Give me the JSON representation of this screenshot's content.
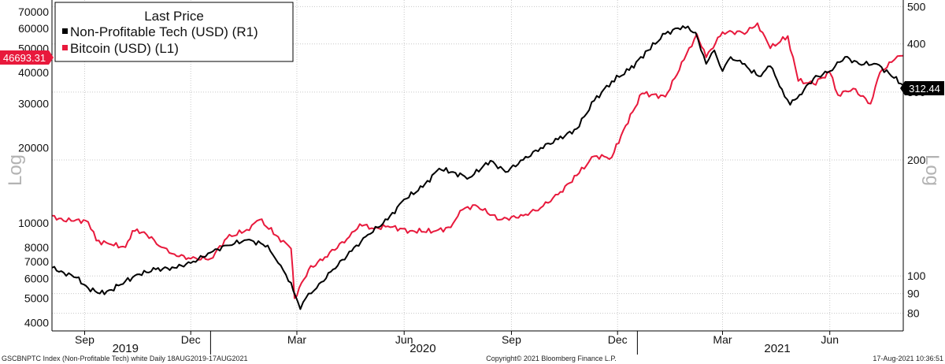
{
  "chart_data": {
    "type": "line",
    "legend": {
      "title": "Last Price",
      "placement": "top-left",
      "entries": [
        {
          "label": "Non-Profitable Tech (USD)  (R1)",
          "color": "#000000"
        },
        {
          "label": "Bitcoin (USD)  (L1)",
          "color": "#e8193c"
        }
      ]
    },
    "y_left": {
      "scale": "log",
      "label": "Log",
      "ticks": [
        "4000",
        "5000",
        "6000",
        "7000",
        "8000",
        "10000",
        "20000",
        "30000",
        "40000",
        "50000",
        "60000",
        "70000"
      ],
      "tick_values": [
        4000,
        5000,
        6000,
        7000,
        8000,
        10000,
        20000,
        30000,
        40000,
        50000,
        60000,
        70000
      ],
      "range": [
        3700,
        78000
      ],
      "last_value_tag": "46693.31"
    },
    "y_right": {
      "scale": "log",
      "label": "Log",
      "ticks": [
        "80",
        "90",
        "100",
        "200",
        "300",
        "400",
        "500"
      ],
      "tick_values": [
        80,
        90,
        100,
        200,
        300,
        400,
        500
      ],
      "range": [
        72,
        520
      ],
      "last_value_tag": "312.44"
    },
    "x_axis": {
      "range": [
        "2019-08-18",
        "2021-08-17"
      ],
      "month_ticks": [
        {
          "label": "Sep",
          "date": "2019-09-15"
        },
        {
          "label": "Dec",
          "date": "2019-12-15"
        },
        {
          "label": "Mar",
          "date": "2020-03-15"
        },
        {
          "label": "Jun",
          "date": "2020-06-15"
        },
        {
          "label": "Sep",
          "date": "2020-09-15"
        },
        {
          "label": "Dec",
          "date": "2020-12-15"
        },
        {
          "label": "Mar",
          "date": "2021-03-15"
        },
        {
          "label": "Jun",
          "date": "2021-06-15"
        }
      ],
      "year_labels": [
        {
          "label": "2019",
          "date": "2019-10-20"
        },
        {
          "label": "2020",
          "date": "2020-07-01"
        },
        {
          "label": "2021",
          "date": "2021-05-01"
        }
      ],
      "year_boundaries": [
        "2020-01-01",
        "2021-01-01"
      ]
    },
    "grid": true,
    "series": [
      {
        "name": "Non-Profitable Tech (USD)  (R1)",
        "axis": "right",
        "color": "#000000",
        "points": [
          [
            "2019-08-18",
            105
          ],
          [
            "2019-08-28",
            102
          ],
          [
            "2019-09-08",
            99
          ],
          [
            "2019-09-18",
            93
          ],
          [
            "2019-09-28",
            90
          ],
          [
            "2019-10-08",
            92
          ],
          [
            "2019-10-20",
            97
          ],
          [
            "2019-11-01",
            101
          ],
          [
            "2019-11-15",
            104
          ],
          [
            "2019-12-01",
            105
          ],
          [
            "2019-12-15",
            108
          ],
          [
            "2020-01-01",
            115
          ],
          [
            "2020-01-15",
            120
          ],
          [
            "2020-02-01",
            124
          ],
          [
            "2020-02-19",
            120
          ],
          [
            "2020-02-28",
            108
          ],
          [
            "2020-03-10",
            96
          ],
          [
            "2020-03-18",
            82
          ],
          [
            "2020-03-25",
            90
          ],
          [
            "2020-04-01",
            93
          ],
          [
            "2020-04-15",
            104
          ],
          [
            "2020-05-01",
            116
          ],
          [
            "2020-05-15",
            128
          ],
          [
            "2020-06-01",
            140
          ],
          [
            "2020-06-15",
            158
          ],
          [
            "2020-07-01",
            170
          ],
          [
            "2020-07-15",
            190
          ],
          [
            "2020-07-25",
            186
          ],
          [
            "2020-08-10",
            180
          ],
          [
            "2020-08-28",
            199
          ],
          [
            "2020-09-10",
            186
          ],
          [
            "2020-09-25",
            200
          ],
          [
            "2020-10-10",
            215
          ],
          [
            "2020-10-25",
            226
          ],
          [
            "2020-11-10",
            241
          ],
          [
            "2020-11-25",
            285
          ],
          [
            "2020-12-10",
            320
          ],
          [
            "2020-12-25",
            342
          ],
          [
            "2021-01-10",
            385
          ],
          [
            "2021-01-25",
            425
          ],
          [
            "2021-02-09",
            445
          ],
          [
            "2021-02-20",
            428
          ],
          [
            "2021-03-01",
            355
          ],
          [
            "2021-03-08",
            385
          ],
          [
            "2021-03-15",
            340
          ],
          [
            "2021-03-22",
            370
          ],
          [
            "2021-04-01",
            355
          ],
          [
            "2021-04-15",
            330
          ],
          [
            "2021-04-25",
            350
          ],
          [
            "2021-05-05",
            305
          ],
          [
            "2021-05-12",
            278
          ],
          [
            "2021-05-20",
            295
          ],
          [
            "2021-06-01",
            325
          ],
          [
            "2021-06-15",
            340
          ],
          [
            "2021-06-28",
            370
          ],
          [
            "2021-07-10",
            355
          ],
          [
            "2021-07-25",
            355
          ],
          [
            "2021-08-05",
            335
          ],
          [
            "2021-08-17",
            312.44
          ]
        ]
      },
      {
        "name": "Bitcoin (USD)  (L1)",
        "axis": "left",
        "color": "#e8193c",
        "points": [
          [
            "2019-08-18",
            10700
          ],
          [
            "2019-08-28",
            10200
          ],
          [
            "2019-09-08",
            10300
          ],
          [
            "2019-09-18",
            10100
          ],
          [
            "2019-09-25",
            8500
          ],
          [
            "2019-10-08",
            8200
          ],
          [
            "2019-10-20",
            8000
          ],
          [
            "2019-10-26",
            9300
          ],
          [
            "2019-11-05",
            9200
          ],
          [
            "2019-11-20",
            8000
          ],
          [
            "2019-12-01",
            7500
          ],
          [
            "2019-12-15",
            7200
          ],
          [
            "2020-01-01",
            7200
          ],
          [
            "2020-01-15",
            8700
          ],
          [
            "2020-02-01",
            9400
          ],
          [
            "2020-02-12",
            10300
          ],
          [
            "2020-02-28",
            8800
          ],
          [
            "2020-03-10",
            7900
          ],
          [
            "2020-03-13",
            5000
          ],
          [
            "2020-03-25",
            6500
          ],
          [
            "2020-04-08",
            7300
          ],
          [
            "2020-04-29",
            8800
          ],
          [
            "2020-05-08",
            9900
          ],
          [
            "2020-05-20",
            9500
          ],
          [
            "2020-06-01",
            9700
          ],
          [
            "2020-06-20",
            9300
          ],
          [
            "2020-07-10",
            9250
          ],
          [
            "2020-07-25",
            9600
          ],
          [
            "2020-08-02",
            11200
          ],
          [
            "2020-08-15",
            11800
          ],
          [
            "2020-09-05",
            10300
          ],
          [
            "2020-09-25",
            10700
          ],
          [
            "2020-10-10",
            11500
          ],
          [
            "2020-10-25",
            13000
          ],
          [
            "2020-11-10",
            15500
          ],
          [
            "2020-11-25",
            18500
          ],
          [
            "2020-12-10",
            18300
          ],
          [
            "2020-12-20",
            23500
          ],
          [
            "2021-01-05",
            33000
          ],
          [
            "2021-01-25",
            32000
          ],
          [
            "2021-02-10",
            45000
          ],
          [
            "2021-02-21",
            57000
          ],
          [
            "2021-03-01",
            46000
          ],
          [
            "2021-03-15",
            58000
          ],
          [
            "2021-04-05",
            58000
          ],
          [
            "2021-04-14",
            63000
          ],
          [
            "2021-04-25",
            50000
          ],
          [
            "2021-05-10",
            56000
          ],
          [
            "2021-05-19",
            37000
          ],
          [
            "2021-06-01",
            36000
          ],
          [
            "2021-06-15",
            40000
          ],
          [
            "2021-06-22",
            32500
          ],
          [
            "2021-07-05",
            34500
          ],
          [
            "2021-07-20",
            30000
          ],
          [
            "2021-07-28",
            40000
          ],
          [
            "2021-08-07",
            44000
          ],
          [
            "2021-08-12",
            46500
          ],
          [
            "2021-08-17",
            46693.31
          ]
        ]
      }
    ]
  },
  "footer": {
    "left": "GSCBNPTC Index (Non-Profitable Tech) white  Daily 18AUG2019-17AUG2021",
    "center": "Copyright© 2021 Bloomberg Finance L.P.",
    "right": "17-Aug-2021 10:36:51"
  }
}
